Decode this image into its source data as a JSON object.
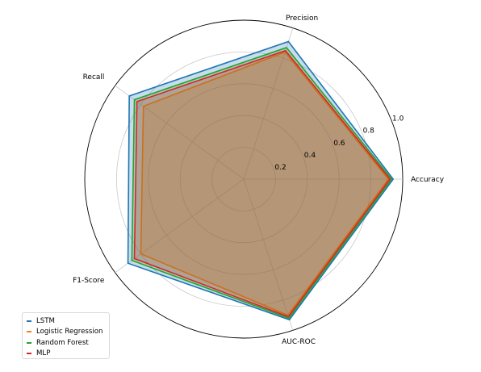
{
  "chart_data": {
    "type": "radar",
    "axes": [
      "Accuracy",
      "Precision",
      "Recall",
      "F1-Score",
      "AUC-ROC"
    ],
    "rlim": [
      0,
      1.0
    ],
    "ticks": [
      0.2,
      0.4,
      0.6,
      0.8,
      1.0
    ],
    "tick_labels": [
      "0.2",
      "0.4",
      "0.6",
      "0.8",
      "1.0"
    ],
    "grid": true,
    "legend_placement": "lower-left",
    "series": [
      {
        "name": "LSTM",
        "color": "#1f77b4",
        "values": [
          0.94,
          0.91,
          0.89,
          0.9,
          0.93
        ]
      },
      {
        "name": "Logistic Regression",
        "color": "#ff7f0e",
        "values": [
          0.91,
          0.84,
          0.78,
          0.8,
          0.9
        ]
      },
      {
        "name": "Random Forest",
        "color": "#2ca02c",
        "values": [
          0.93,
          0.87,
          0.85,
          0.87,
          0.92
        ]
      },
      {
        "name": "MLP",
        "color": "#d62728",
        "values": [
          0.92,
          0.85,
          0.83,
          0.85,
          0.91
        ]
      }
    ]
  }
}
